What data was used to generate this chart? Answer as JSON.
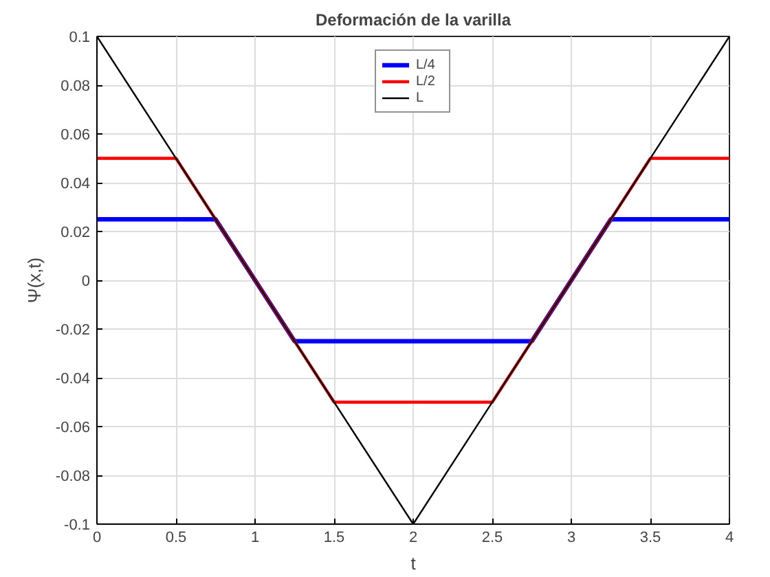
{
  "chart_data": {
    "type": "line",
    "title": "Deformación de la varilla",
    "xlabel": "t",
    "ylabel": "Ψ(x,t)",
    "xlim": [
      0,
      4
    ],
    "ylim": [
      -0.1,
      0.1
    ],
    "xticks": [
      0,
      0.5,
      1,
      1.5,
      2,
      2.5,
      3,
      3.5,
      4
    ],
    "yticks": [
      -0.1,
      -0.08,
      -0.06,
      -0.04,
      -0.02,
      0,
      0.02,
      0.04,
      0.06,
      0.08,
      0.1
    ],
    "grid": true,
    "legend": "top",
    "line_style": "solid",
    "marker": "none",
    "series": [
      {
        "name": "L/4",
        "color": "#0000ff",
        "x": [
          0,
          0.75,
          1.25,
          2.75,
          3.25,
          4
        ],
        "values": [
          0.025,
          0.025,
          -0.025,
          -0.025,
          0.025,
          0.025
        ]
      },
      {
        "name": "L/2",
        "color": "#ff0000",
        "x": [
          0,
          0.5,
          1.5,
          2.5,
          3.5,
          4
        ],
        "values": [
          0.05,
          0.05,
          -0.05,
          -0.05,
          0.05,
          0.05
        ]
      },
      {
        "name": "L",
        "color": "#000000",
        "x": [
          0,
          2,
          4
        ],
        "values": [
          0.1,
          -0.1,
          0.1
        ]
      }
    ]
  }
}
